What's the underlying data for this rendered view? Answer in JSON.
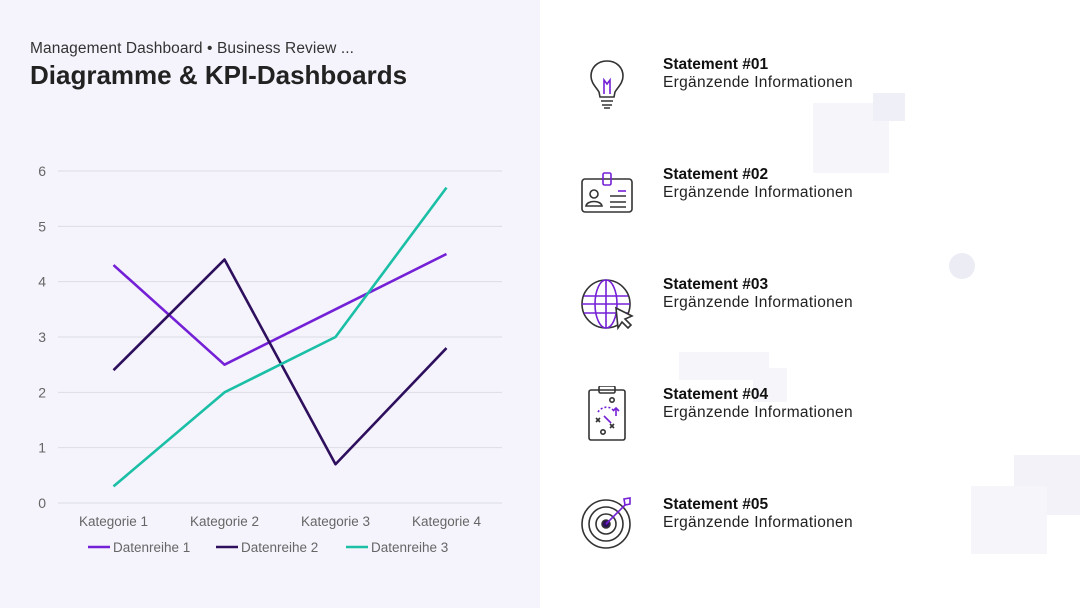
{
  "header": {
    "subtitle": "Management Dashboard • Business Review ...",
    "title": "Diagramme & KPI-Dashboards"
  },
  "chart_data": {
    "type": "line",
    "categories": [
      "Kategorie 1",
      "Kategorie 2",
      "Kategorie 3",
      "Kategorie 4"
    ],
    "series": [
      {
        "name": "Datenreihe 1",
        "values": [
          4.3,
          2.5,
          3.5,
          4.5
        ],
        "color": "#7420d6"
      },
      {
        "name": "Datenreihe 2",
        "values": [
          2.4,
          4.4,
          0.7,
          2.8
        ],
        "color": "#2e0f5e"
      },
      {
        "name": "Datenreihe 3",
        "values": [
          0.3,
          2.0,
          3.0,
          5.7
        ],
        "color": "#1bbfa6"
      }
    ],
    "yticks": [
      0,
      1,
      2,
      3,
      4,
      5,
      6
    ],
    "ylim": [
      0,
      6
    ],
    "grid": true,
    "legend": "bottom",
    "title": "",
    "xlabel": "",
    "ylabel": ""
  },
  "statements": [
    {
      "title": "Statement #01",
      "subtitle": "Ergänzende Informationen",
      "icon": "lightbulb-icon"
    },
    {
      "title": "Statement #02",
      "subtitle": "Ergänzende Informationen",
      "icon": "id-badge-icon"
    },
    {
      "title": "Statement #03",
      "subtitle": "Ergänzende Informationen",
      "icon": "globe-cursor-icon"
    },
    {
      "title": "Statement #04",
      "subtitle": "Ergänzende Informationen",
      "icon": "strategy-clipboard-icon"
    },
    {
      "title": "Statement #05",
      "subtitle": "Ergänzende Informationen",
      "icon": "target-icon"
    }
  ],
  "colors": {
    "accent": "#7420d6",
    "icon_stroke": "#333333",
    "panel_bg": "#f5f4fc"
  }
}
